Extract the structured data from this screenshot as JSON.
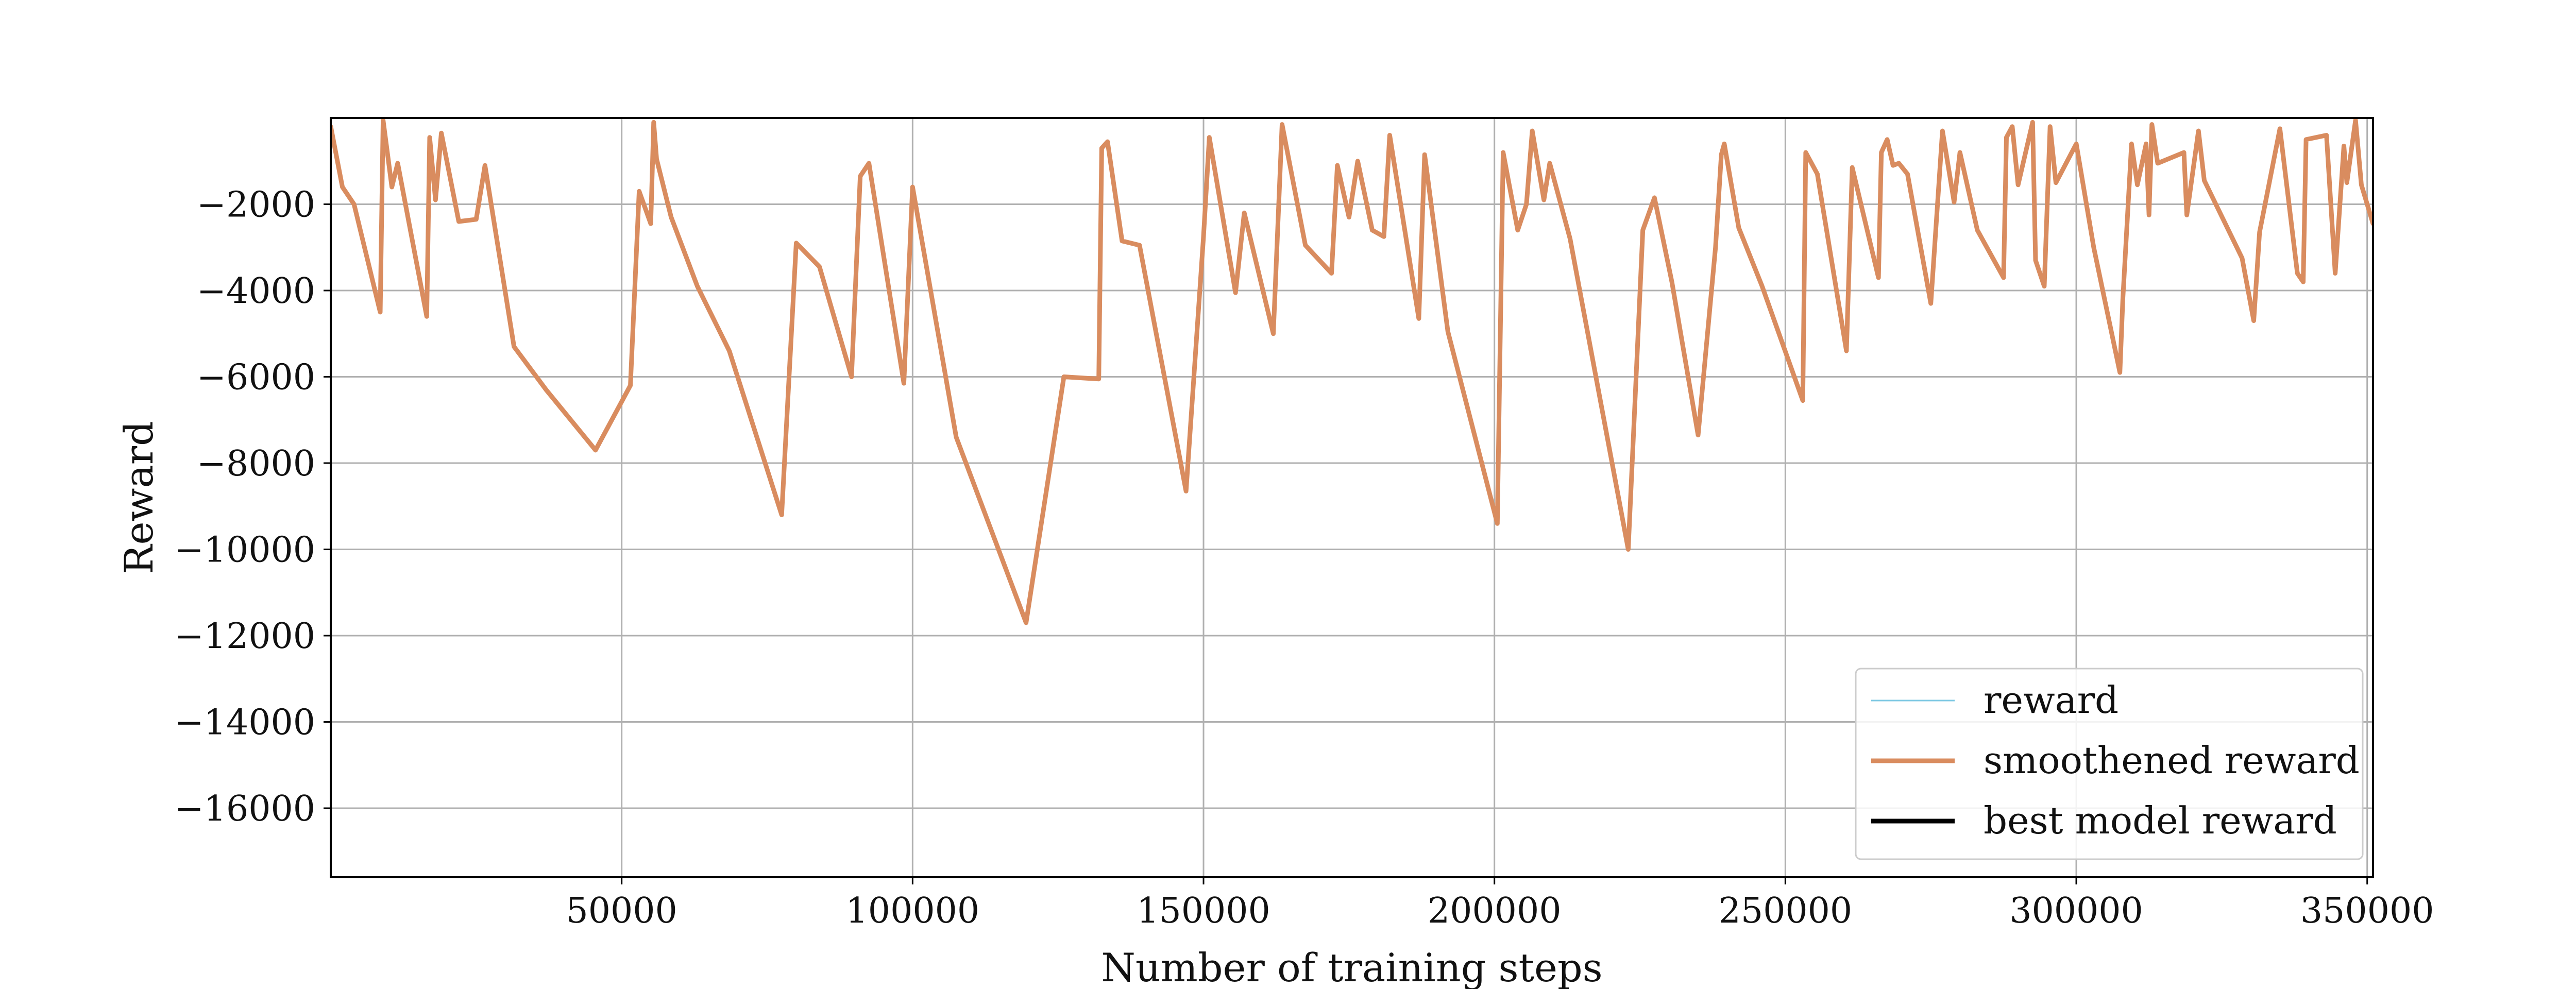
{
  "chart_data": {
    "type": "line",
    "title": "",
    "xlabel": "Number of training steps",
    "ylabel": "Reward",
    "xlim": [
      0,
      351000
    ],
    "ylim": [
      -17600,
      0
    ],
    "xticks": [
      50000,
      100000,
      150000,
      200000,
      250000,
      300000,
      350000
    ],
    "xtick_labels": [
      "50000",
      "100000",
      "150000",
      "200000",
      "250000",
      "300000",
      "350000"
    ],
    "yticks": [
      -2000,
      -4000,
      -6000,
      -8000,
      -10000,
      -12000,
      -14000,
      -16000
    ],
    "ytick_labels": [
      "−2000",
      "−4000",
      "−6000",
      "−8000",
      "−10000",
      "−12000",
      "−14000",
      "−16000"
    ],
    "grid": true,
    "legend_position": "lower-right",
    "legend": [
      {
        "label": "reward",
        "color": "#7ec8e3"
      },
      {
        "label": "smoothened reward",
        "color": "#d98c5f"
      },
      {
        "label": "best model reward",
        "color": "#000000"
      }
    ],
    "series": [
      {
        "name": "smoothened reward",
        "color": "#d98c5f",
        "x": [
          0,
          2000,
          4000,
          8500,
          9000,
          10500,
          11500,
          16500,
          17000,
          18000,
          19000,
          22000,
          25000,
          26500,
          31500,
          37000,
          45500,
          51500,
          53000,
          55000,
          55500,
          56000,
          58500,
          63000,
          68500,
          77500,
          80000,
          84000,
          89500,
          91000,
          92500,
          98500,
          100000,
          107500,
          119500,
          126000,
          132000,
          132500,
          133500,
          136000,
          139000,
          147000,
          150000,
          151000,
          155500,
          157000,
          162000,
          163500,
          164500,
          167500,
          172000,
          173000,
          175000,
          176500,
          179000,
          181000,
          182000,
          187000,
          188000,
          192000,
          200500,
          201500,
          204000,
          205500,
          206500,
          208500,
          209500,
          213000,
          223000,
          225500,
          227500,
          230500,
          235000,
          238000,
          239000,
          239500,
          242000,
          246000,
          253000,
          253500,
          255500,
          260500,
          261500,
          266000,
          266500,
          267500,
          268500,
          269500,
          271000,
          275000,
          277000,
          279000,
          280000,
          283000,
          287500,
          288000,
          289000,
          290000,
          292500,
          293000,
          294500,
          295500,
          296500,
          300000,
          303000,
          307500,
          308000,
          309500,
          310500,
          312000,
          312500,
          313000,
          314000,
          318500,
          319000,
          321000,
          322000,
          328500,
          330500,
          331500,
          335000,
          338000,
          339000,
          339500,
          343000,
          344500,
          346000,
          346500,
          348000,
          349000,
          351000
        ],
        "y": [
          -200,
          -1600,
          -2000,
          -4500,
          -50,
          -1600,
          -1050,
          -4600,
          -450,
          -1900,
          -350,
          -2400,
          -2350,
          -1100,
          -5300,
          -6300,
          -7700,
          -6200,
          -1700,
          -2450,
          -100,
          -950,
          -2300,
          -3900,
          -5400,
          -9200,
          -2900,
          -3450,
          -6000,
          -1350,
          -1050,
          -6150,
          -1600,
          -7400,
          -11700,
          -6000,
          -6050,
          -700,
          -550,
          -2850,
          -2950,
          -8650,
          -2750,
          -450,
          -4050,
          -2200,
          -5000,
          -150,
          -850,
          -2950,
          -3600,
          -1100,
          -2300,
          -1000,
          -2600,
          -2750,
          -400,
          -4650,
          -850,
          -4950,
          -9400,
          -800,
          -2600,
          -2000,
          -300,
          -1900,
          -1050,
          -2800,
          -10000,
          -2600,
          -1850,
          -3800,
          -7350,
          -3000,
          -850,
          -600,
          -2550,
          -3900,
          -6550,
          -800,
          -1300,
          -5400,
          -1150,
          -3700,
          -800,
          -500,
          -1100,
          -1050,
          -1300,
          -4300,
          -300,
          -1950,
          -800,
          -2600,
          -3700,
          -450,
          -200,
          -1550,
          -100,
          -3300,
          -3900,
          -200,
          -1500,
          -600,
          -3000,
          -5900,
          -4200,
          -600,
          -1550,
          -600,
          -2250,
          -150,
          -1050,
          -800,
          -2250,
          -300,
          -1450,
          -3250,
          -4700,
          -2650,
          -250,
          -3600,
          -3800,
          -500,
          -400,
          -3600,
          -650,
          -1500,
          -50,
          -1550,
          -2450
        ]
      }
    ]
  }
}
